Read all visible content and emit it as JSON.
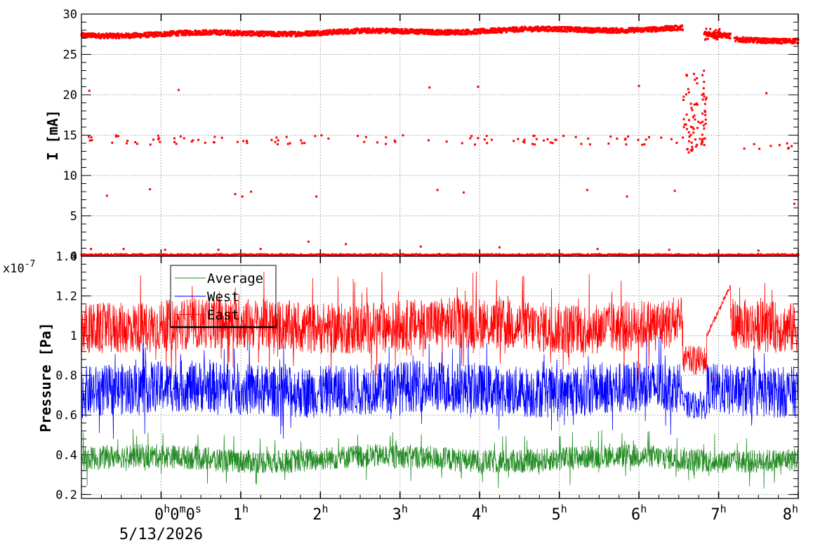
{
  "chart_data": [
    {
      "type": "scatter",
      "ylabel": "I [mA]",
      "ylim": [
        0,
        30
      ],
      "y_ticks": [
        "0",
        "5",
        "10",
        "15",
        "20",
        "25",
        "30"
      ],
      "grid": true,
      "marker_color": "#ff0000",
      "series": [
        {
          "segments": [
            {
              "x": [
                -1.0,
                6.55
              ],
              "y": [
                27.4,
                28.2
              ]
            },
            {
              "x": [
                6.82,
                7.15
              ],
              "y": [
                27.4,
                27.2
              ]
            },
            {
              "x": [
                7.2,
                8.0
              ],
              "y": [
                26.8,
                26.8
              ]
            }
          ],
          "baseline": {
            "x": [
              -1.0,
              8.0
            ],
            "y": 0.1
          },
          "outlier_bands": [
            {
              "x": [
                -1.0,
                6.5
              ],
              "y": [
                13.8,
                15.0
              ]
            },
            {
              "x": [
                7.3,
                7.95
              ],
              "y": [
                13.2,
                14.0
              ]
            }
          ],
          "points": [
            {
              "x": -0.9,
              "y": 20.5
            },
            {
              "x": 0.22,
              "y": 20.6
            },
            {
              "x": 3.37,
              "y": 20.9
            },
            {
              "x": 3.98,
              "y": 21.0
            },
            {
              "x": 6.0,
              "y": 21.1
            },
            {
              "x": 7.6,
              "y": 20.2
            },
            {
              "x": -0.68,
              "y": 7.5
            },
            {
              "x": -0.14,
              "y": 8.3
            },
            {
              "x": 0.93,
              "y": 7.7
            },
            {
              "x": 1.02,
              "y": 7.4
            },
            {
              "x": 1.13,
              "y": 8.0
            },
            {
              "x": 1.95,
              "y": 7.4
            },
            {
              "x": 3.47,
              "y": 8.2
            },
            {
              "x": 3.8,
              "y": 7.9
            },
            {
              "x": 5.35,
              "y": 8.2
            },
            {
              "x": 5.85,
              "y": 7.4
            },
            {
              "x": 6.45,
              "y": 8.1
            },
            {
              "x": 7.95,
              "y": 6.5
            },
            {
              "x": -0.88,
              "y": 0.9
            },
            {
              "x": -0.47,
              "y": 0.9
            },
            {
              "x": 0.05,
              "y": 0.8
            },
            {
              "x": 0.72,
              "y": 0.8
            },
            {
              "x": 1.25,
              "y": 0.9
            },
            {
              "x": 1.85,
              "y": 1.8
            },
            {
              "x": 2.32,
              "y": 1.5
            },
            {
              "x": 3.26,
              "y": 1.2
            },
            {
              "x": 4.25,
              "y": 1.1
            },
            {
              "x": 5.48,
              "y": 0.9
            },
            {
              "x": 6.38,
              "y": 0.8
            },
            {
              "x": 7.5,
              "y": 0.7
            }
          ],
          "transition": {
            "x": [
              6.55,
              6.85
            ],
            "y": [
              12.5,
              23.0
            ]
          }
        }
      ]
    },
    {
      "type": "line",
      "ylabel": "Pressure [Pa]",
      "y_exponent": "x10",
      "y_exponent_power": "-7",
      "ylim": [
        0.18,
        1.4
      ],
      "y_ticks": [
        "0.2",
        "0.4",
        "0.6",
        "0.8",
        "1",
        "1.2",
        "1.4"
      ],
      "x_ticks": [
        {
          "value": 0,
          "hours": "0",
          "minutes": "0",
          "seconds": "0",
          "date": "5/13/2026"
        },
        {
          "value": 1,
          "hours": "1"
        },
        {
          "value": 2,
          "hours": "2"
        },
        {
          "value": 3,
          "hours": "3"
        },
        {
          "value": 4,
          "hours": "4"
        },
        {
          "value": 5,
          "hours": "5"
        },
        {
          "value": 6,
          "hours": "6"
        },
        {
          "value": 7,
          "hours": "7"
        },
        {
          "value": 8,
          "hours": "8"
        }
      ],
      "xlim": [
        -1.0,
        8.0
      ],
      "grid": true,
      "legend_position": "top-left",
      "series": [
        {
          "name": "Average",
          "color": "#228b22",
          "center": 0.38,
          "spread": 0.06,
          "spike": 0.08
        },
        {
          "name": "West",
          "color": "#0000ff",
          "center": 0.73,
          "spread": 0.13,
          "spike": 0.12
        },
        {
          "name": "East",
          "color": "#ff0000",
          "center": 1.05,
          "spread": 0.13,
          "spike": 0.15
        }
      ],
      "east_dip": {
        "x": [
          6.55,
          6.85
        ],
        "y": [
          0.8,
          0.95
        ]
      },
      "east_rise": {
        "x": [
          6.85,
          7.15
        ],
        "y": [
          1.0,
          1.25
        ]
      },
      "west_dip": {
        "x": [
          6.55,
          6.85
        ],
        "y": [
          0.58,
          0.72
        ]
      }
    }
  ]
}
